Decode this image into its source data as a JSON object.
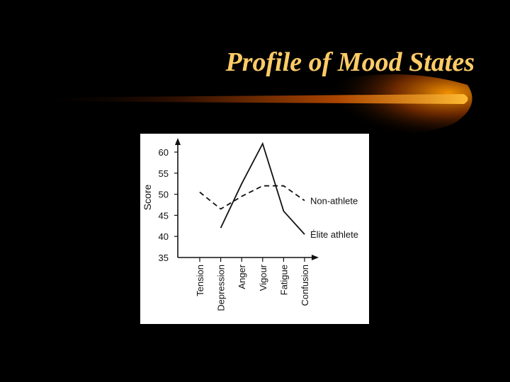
{
  "slide": {
    "title": "Profile of Mood States",
    "accent_color": "#ffcc66",
    "bar_color": "#ff9900",
    "background": "#000000"
  },
  "chart_data": {
    "type": "line",
    "title": "",
    "xlabel": "",
    "ylabel": "Score",
    "ylim": [
      35,
      62
    ],
    "yticks": [
      35,
      40,
      45,
      50,
      55,
      60
    ],
    "categories": [
      "Tension",
      "Depression",
      "Anger",
      "Vigour",
      "Fatigue",
      "Confusion"
    ],
    "legend_placement": "inline-right",
    "grid": false,
    "series": [
      {
        "name": "Non-athlete",
        "style": "dashed",
        "values": [
          50.5,
          46.5,
          49.5,
          52,
          52,
          48.5
        ]
      },
      {
        "name": "Élite athlete",
        "style": "solid",
        "values": [
          null,
          42,
          52.5,
          62,
          46,
          40.5
        ]
      }
    ]
  }
}
